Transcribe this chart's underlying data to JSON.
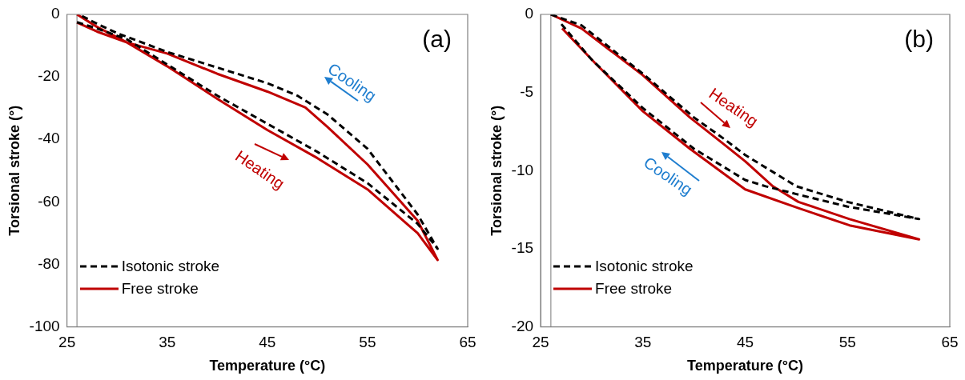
{
  "chart_data": [
    {
      "type": "line",
      "xlabel": "Temperature (°C)",
      "ylabel": "Torsional stroke (°)",
      "xlim": [
        25,
        65
      ],
      "xticks": [
        25,
        35,
        45,
        55,
        65
      ],
      "ylim": [
        -100,
        0
      ],
      "yticks": [
        -100,
        -80,
        -60,
        -40,
        -20,
        0
      ],
      "grid": false,
      "legend": "bottom left",
      "marker": "none",
      "ref_lines": [
        {
          "axis": "x",
          "value": 26,
          "color": "#a6a6a6"
        }
      ],
      "annotations": [
        "(a)",
        "Cooling",
        "Heating"
      ],
      "series": [
        {
          "name": "Isotonic stroke",
          "color": "#000000",
          "line_style": "dashed",
          "x": [
            26,
            28,
            31,
            35,
            40,
            45,
            50,
            55,
            60,
            62,
            60,
            55,
            51,
            48,
            45,
            40,
            35,
            30,
            28,
            26.5
          ],
          "values": [
            -2.5,
            -4.5,
            -8,
            -16,
            -26,
            -35,
            -44,
            -54,
            -67,
            -75,
            -64,
            -43,
            -32,
            -26,
            -22,
            -17,
            -12,
            -6,
            -3,
            -0.5
          ]
        },
        {
          "name": "Free stroke",
          "color": "#c00000",
          "line_style": "solid",
          "x": [
            26,
            28,
            31,
            35,
            40,
            45,
            50,
            55,
            60,
            62,
            60,
            55,
            51,
            48.8,
            45,
            40,
            35,
            31,
            28,
            26
          ],
          "values": [
            0,
            -4,
            -9,
            -16.6,
            -27,
            -37,
            -46,
            -56,
            -70,
            -78.6,
            -66,
            -48,
            -36,
            -29.8,
            -24.7,
            -19,
            -12.5,
            -9,
            -5.5,
            -2.6
          ]
        }
      ]
    },
    {
      "type": "line",
      "xlabel": "Temperature (°C)",
      "ylabel": "Torsional stroke (°)",
      "xlim": [
        25,
        65
      ],
      "xticks": [
        25,
        35,
        45,
        55,
        65
      ],
      "ylim": [
        -20,
        0
      ],
      "yticks": [
        -20,
        -15,
        -10,
        -5,
        0
      ],
      "grid": false,
      "legend": "bottom left",
      "marker": "none",
      "ref_lines": [
        {
          "axis": "x",
          "value": 26,
          "color": "#a6a6a6"
        }
      ],
      "annotations": [
        "(b)",
        "Heating",
        "Cooling"
      ],
      "series": [
        {
          "name": "Isotonic stroke",
          "color": "#000000",
          "line_style": "dashed",
          "x": [
            26,
            29,
            35,
            40,
            43,
            45,
            50,
            55,
            62,
            55,
            50,
            47,
            45,
            40,
            35,
            30,
            27
          ],
          "values": [
            0,
            -0.7,
            -3.8,
            -6.6,
            -8,
            -9,
            -11,
            -12,
            -13.1,
            -12.3,
            -11.5,
            -11,
            -10.6,
            -8.6,
            -6,
            -2.9,
            -0.6
          ]
        },
        {
          "name": "Free stroke",
          "color": "#c00000",
          "line_style": "solid",
          "x": [
            26,
            29,
            35,
            39.6,
            42.7,
            45,
            47.7,
            50.2,
            55.2,
            62,
            55.2,
            50.2,
            45,
            39.6,
            35,
            30.3,
            27.1
          ],
          "values": [
            0,
            -0.9,
            -3.9,
            -6.6,
            -8.2,
            -9.4,
            -11,
            -12,
            -13.1,
            -14.4,
            -13.5,
            -12.4,
            -11.2,
            -8.6,
            -6.2,
            -3.1,
            -0.9
          ]
        }
      ]
    }
  ]
}
